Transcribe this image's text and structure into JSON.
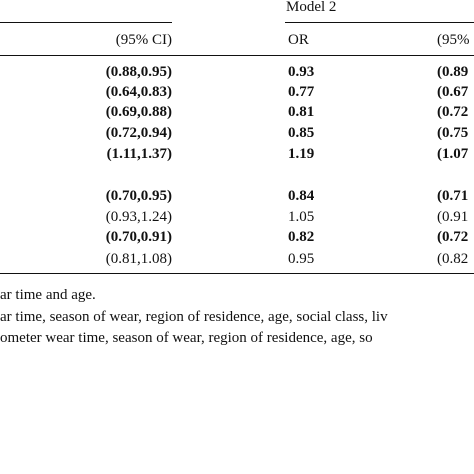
{
  "table": {
    "group_header": "Model 2",
    "columns": [
      "(95% CI)",
      "OR",
      "(95%"
    ],
    "rows": [
      {
        "ci1": "(0.88,0.95)",
        "or": "0.93",
        "ci2": "(0.89",
        "bold": true
      },
      {
        "ci1": "(0.64,0.83)",
        "or": "0.77",
        "ci2": "(0.67",
        "bold": true
      },
      {
        "ci1": "(0.69,0.88)",
        "or": "0.81",
        "ci2": "(0.72",
        "bold": true
      },
      {
        "ci1": "(0.72,0.94)",
        "or": "0.85",
        "ci2": "(0.75",
        "bold": true
      },
      {
        "ci1": "(1.11,1.37)",
        "or": "1.19",
        "ci2": "(1.07",
        "bold": true
      },
      {
        "ci1": "(0.70,0.95)",
        "or": "0.84",
        "ci2": "(0.71",
        "bold": true
      },
      {
        "ci1": "(0.93,1.24)",
        "or": "1.05",
        "ci2": "(0.91",
        "bold": false
      },
      {
        "ci1": "(0.70,0.91)",
        "or": "0.82",
        "ci2": "(0.72",
        "bold": true
      },
      {
        "ci1": "(0.81,1.08)",
        "or": "0.95",
        "ci2": "(0.82",
        "bold": false
      }
    ],
    "footnotes": [
      "ar time and age.",
      "ar time, season of wear, region of residence, age, social class, liv",
      "ometer wear time, season of wear, region of residence, age, so"
    ]
  }
}
